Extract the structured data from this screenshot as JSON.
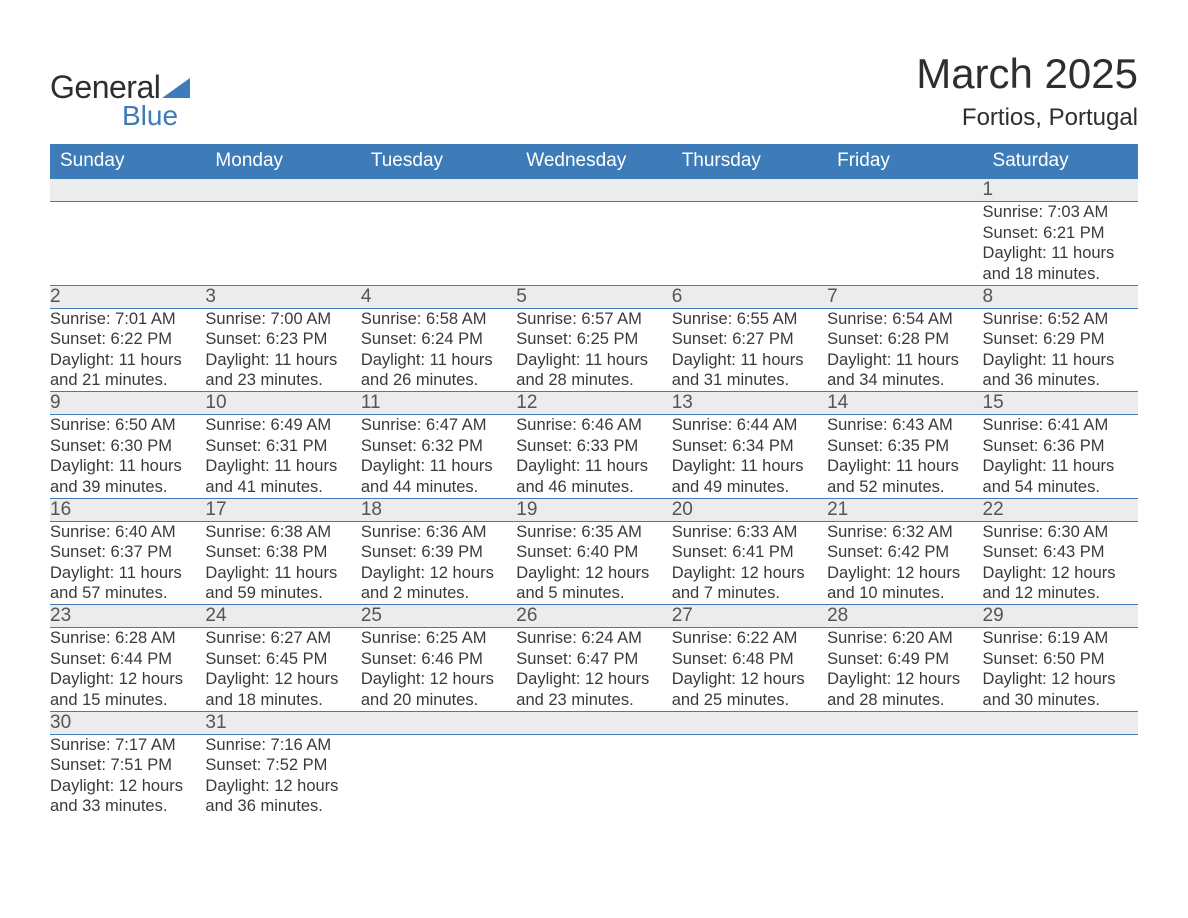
{
  "logo": {
    "text_general": "General",
    "text_blue": "Blue",
    "sail_color": "#3d7cb8"
  },
  "title": {
    "month_year": "March 2025",
    "location": "Fortios, Portugal"
  },
  "colors": {
    "header_bg": "#3d7cb8",
    "header_text": "#ffffff",
    "daynum_bg": "#ececec",
    "body_text": "#3a3a3a",
    "page_bg": "#ffffff",
    "rule": "#3d7cb8"
  },
  "typography": {
    "title_fontsize": 42,
    "location_fontsize": 24,
    "header_fontsize": 19,
    "daynum_fontsize": 19,
    "detail_fontsize": 16.5
  },
  "weekdays": [
    "Sunday",
    "Monday",
    "Tuesday",
    "Wednesday",
    "Thursday",
    "Friday",
    "Saturday"
  ],
  "weeks": [
    [
      {
        "day": "",
        "sunrise": "",
        "sunset": "",
        "daylight": ""
      },
      {
        "day": "",
        "sunrise": "",
        "sunset": "",
        "daylight": ""
      },
      {
        "day": "",
        "sunrise": "",
        "sunset": "",
        "daylight": ""
      },
      {
        "day": "",
        "sunrise": "",
        "sunset": "",
        "daylight": ""
      },
      {
        "day": "",
        "sunrise": "",
        "sunset": "",
        "daylight": ""
      },
      {
        "day": "",
        "sunrise": "",
        "sunset": "",
        "daylight": ""
      },
      {
        "day": "1",
        "sunrise": "Sunrise: 7:03 AM",
        "sunset": "Sunset: 6:21 PM",
        "daylight": "Daylight: 11 hours and 18 minutes."
      }
    ],
    [
      {
        "day": "2",
        "sunrise": "Sunrise: 7:01 AM",
        "sunset": "Sunset: 6:22 PM",
        "daylight": "Daylight: 11 hours and 21 minutes."
      },
      {
        "day": "3",
        "sunrise": "Sunrise: 7:00 AM",
        "sunset": "Sunset: 6:23 PM",
        "daylight": "Daylight: 11 hours and 23 minutes."
      },
      {
        "day": "4",
        "sunrise": "Sunrise: 6:58 AM",
        "sunset": "Sunset: 6:24 PM",
        "daylight": "Daylight: 11 hours and 26 minutes."
      },
      {
        "day": "5",
        "sunrise": "Sunrise: 6:57 AM",
        "sunset": "Sunset: 6:25 PM",
        "daylight": "Daylight: 11 hours and 28 minutes."
      },
      {
        "day": "6",
        "sunrise": "Sunrise: 6:55 AM",
        "sunset": "Sunset: 6:27 PM",
        "daylight": "Daylight: 11 hours and 31 minutes."
      },
      {
        "day": "7",
        "sunrise": "Sunrise: 6:54 AM",
        "sunset": "Sunset: 6:28 PM",
        "daylight": "Daylight: 11 hours and 34 minutes."
      },
      {
        "day": "8",
        "sunrise": "Sunrise: 6:52 AM",
        "sunset": "Sunset: 6:29 PM",
        "daylight": "Daylight: 11 hours and 36 minutes."
      }
    ],
    [
      {
        "day": "9",
        "sunrise": "Sunrise: 6:50 AM",
        "sunset": "Sunset: 6:30 PM",
        "daylight": "Daylight: 11 hours and 39 minutes."
      },
      {
        "day": "10",
        "sunrise": "Sunrise: 6:49 AM",
        "sunset": "Sunset: 6:31 PM",
        "daylight": "Daylight: 11 hours and 41 minutes."
      },
      {
        "day": "11",
        "sunrise": "Sunrise: 6:47 AM",
        "sunset": "Sunset: 6:32 PM",
        "daylight": "Daylight: 11 hours and 44 minutes."
      },
      {
        "day": "12",
        "sunrise": "Sunrise: 6:46 AM",
        "sunset": "Sunset: 6:33 PM",
        "daylight": "Daylight: 11 hours and 46 minutes."
      },
      {
        "day": "13",
        "sunrise": "Sunrise: 6:44 AM",
        "sunset": "Sunset: 6:34 PM",
        "daylight": "Daylight: 11 hours and 49 minutes."
      },
      {
        "day": "14",
        "sunrise": "Sunrise: 6:43 AM",
        "sunset": "Sunset: 6:35 PM",
        "daylight": "Daylight: 11 hours and 52 minutes."
      },
      {
        "day": "15",
        "sunrise": "Sunrise: 6:41 AM",
        "sunset": "Sunset: 6:36 PM",
        "daylight": "Daylight: 11 hours and 54 minutes."
      }
    ],
    [
      {
        "day": "16",
        "sunrise": "Sunrise: 6:40 AM",
        "sunset": "Sunset: 6:37 PM",
        "daylight": "Daylight: 11 hours and 57 minutes."
      },
      {
        "day": "17",
        "sunrise": "Sunrise: 6:38 AM",
        "sunset": "Sunset: 6:38 PM",
        "daylight": "Daylight: 11 hours and 59 minutes."
      },
      {
        "day": "18",
        "sunrise": "Sunrise: 6:36 AM",
        "sunset": "Sunset: 6:39 PM",
        "daylight": "Daylight: 12 hours and 2 minutes."
      },
      {
        "day": "19",
        "sunrise": "Sunrise: 6:35 AM",
        "sunset": "Sunset: 6:40 PM",
        "daylight": "Daylight: 12 hours and 5 minutes."
      },
      {
        "day": "20",
        "sunrise": "Sunrise: 6:33 AM",
        "sunset": "Sunset: 6:41 PM",
        "daylight": "Daylight: 12 hours and 7 minutes."
      },
      {
        "day": "21",
        "sunrise": "Sunrise: 6:32 AM",
        "sunset": "Sunset: 6:42 PM",
        "daylight": "Daylight: 12 hours and 10 minutes."
      },
      {
        "day": "22",
        "sunrise": "Sunrise: 6:30 AM",
        "sunset": "Sunset: 6:43 PM",
        "daylight": "Daylight: 12 hours and 12 minutes."
      }
    ],
    [
      {
        "day": "23",
        "sunrise": "Sunrise: 6:28 AM",
        "sunset": "Sunset: 6:44 PM",
        "daylight": "Daylight: 12 hours and 15 minutes."
      },
      {
        "day": "24",
        "sunrise": "Sunrise: 6:27 AM",
        "sunset": "Sunset: 6:45 PM",
        "daylight": "Daylight: 12 hours and 18 minutes."
      },
      {
        "day": "25",
        "sunrise": "Sunrise: 6:25 AM",
        "sunset": "Sunset: 6:46 PM",
        "daylight": "Daylight: 12 hours and 20 minutes."
      },
      {
        "day": "26",
        "sunrise": "Sunrise: 6:24 AM",
        "sunset": "Sunset: 6:47 PM",
        "daylight": "Daylight: 12 hours and 23 minutes."
      },
      {
        "day": "27",
        "sunrise": "Sunrise: 6:22 AM",
        "sunset": "Sunset: 6:48 PM",
        "daylight": "Daylight: 12 hours and 25 minutes."
      },
      {
        "day": "28",
        "sunrise": "Sunrise: 6:20 AM",
        "sunset": "Sunset: 6:49 PM",
        "daylight": "Daylight: 12 hours and 28 minutes."
      },
      {
        "day": "29",
        "sunrise": "Sunrise: 6:19 AM",
        "sunset": "Sunset: 6:50 PM",
        "daylight": "Daylight: 12 hours and 30 minutes."
      }
    ],
    [
      {
        "day": "30",
        "sunrise": "Sunrise: 7:17 AM",
        "sunset": "Sunset: 7:51 PM",
        "daylight": "Daylight: 12 hours and 33 minutes."
      },
      {
        "day": "31",
        "sunrise": "Sunrise: 7:16 AM",
        "sunset": "Sunset: 7:52 PM",
        "daylight": "Daylight: 12 hours and 36 minutes."
      },
      {
        "day": "",
        "sunrise": "",
        "sunset": "",
        "daylight": ""
      },
      {
        "day": "",
        "sunrise": "",
        "sunset": "",
        "daylight": ""
      },
      {
        "day": "",
        "sunrise": "",
        "sunset": "",
        "daylight": ""
      },
      {
        "day": "",
        "sunrise": "",
        "sunset": "",
        "daylight": ""
      },
      {
        "day": "",
        "sunrise": "",
        "sunset": "",
        "daylight": ""
      }
    ]
  ]
}
